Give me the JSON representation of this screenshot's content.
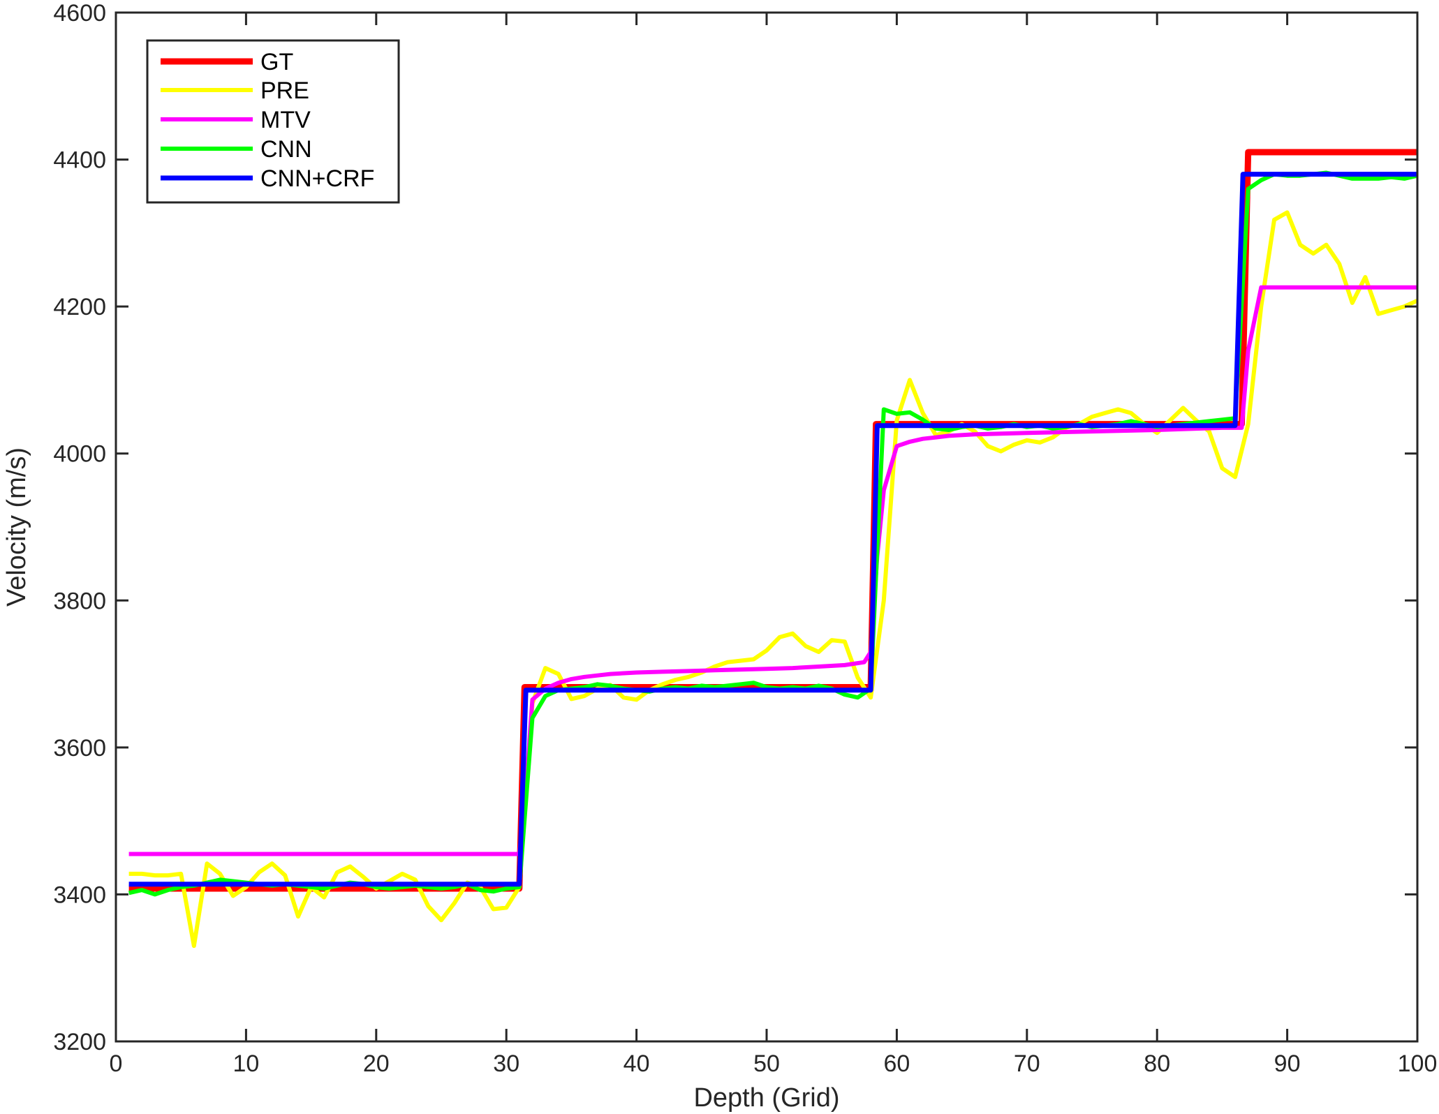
{
  "chart_data": {
    "type": "line",
    "title": "",
    "xlabel": "Depth (Grid)",
    "ylabel": "Velocity (m/s)",
    "xlim": [
      0,
      100
    ],
    "ylim": [
      3200,
      4600
    ],
    "xticks": [
      0,
      10,
      20,
      30,
      40,
      50,
      60,
      70,
      80,
      90,
      100
    ],
    "yticks": [
      3200,
      3400,
      3600,
      3800,
      4000,
      4200,
      4400,
      4600
    ],
    "xtick_labels": [
      "0",
      "10",
      "20",
      "30",
      "40",
      "50",
      "60",
      "70",
      "80",
      "90",
      "100"
    ],
    "ytick_labels": [
      "3200",
      "3400",
      "3600",
      "3800",
      "4000",
      "4200",
      "4400",
      "4600"
    ],
    "grid": false,
    "legend_position": "top-left",
    "series": [
      {
        "name": "GT",
        "color": "#ff0000",
        "x": [
          1,
          31,
          31.4,
          58,
          58.4,
          86.5,
          87,
          100
        ],
        "y": [
          3408,
          3408,
          3682,
          3682,
          4040,
          4040,
          4410,
          4410
        ]
      },
      {
        "name": "PRE",
        "color": "#ffff00",
        "x": [
          1,
          2,
          3,
          4,
          5,
          6,
          7,
          8,
          9,
          10,
          11,
          12,
          13,
          14,
          15,
          16,
          17,
          18,
          19,
          20,
          21,
          22,
          23,
          24,
          25,
          26,
          27,
          28,
          29,
          30,
          31,
          32,
          33,
          34,
          35,
          36,
          37,
          38,
          39,
          40,
          41,
          42,
          43,
          44,
          45,
          46,
          47,
          48,
          49,
          50,
          51,
          52,
          53,
          54,
          55,
          56,
          57,
          58,
          59,
          60,
          61,
          62,
          63,
          64,
          65,
          66,
          67,
          68,
          69,
          70,
          71,
          72,
          73,
          74,
          75,
          76,
          77,
          78,
          79,
          80,
          81,
          82,
          83,
          84,
          85,
          86,
          87,
          88,
          89,
          90,
          91,
          92,
          93,
          94,
          95,
          96,
          97,
          98,
          99,
          100
        ],
        "y": [
          3428,
          3428,
          3426,
          3426,
          3428,
          3330,
          3442,
          3428,
          3398,
          3410,
          3430,
          3442,
          3426,
          3370,
          3410,
          3396,
          3430,
          3438,
          3424,
          3408,
          3418,
          3428,
          3420,
          3384,
          3365,
          3388,
          3416,
          3410,
          3380,
          3382,
          3410,
          3660,
          3708,
          3700,
          3666,
          3670,
          3680,
          3685,
          3668,
          3665,
          3678,
          3686,
          3692,
          3696,
          3702,
          3710,
          3716,
          3718,
          3720,
          3732,
          3750,
          3755,
          3738,
          3730,
          3746,
          3744,
          3695,
          3668,
          3800,
          4045,
          4100,
          4055,
          4025,
          4030,
          4040,
          4030,
          4010,
          4003,
          4012,
          4018,
          4015,
          4022,
          4035,
          4040,
          4050,
          4055,
          4060,
          4055,
          4040,
          4028,
          4045,
          4062,
          4045,
          4030,
          3980,
          3968,
          4040,
          4200,
          4318,
          4328,
          4284,
          4272,
          4284,
          4258,
          4205,
          4240,
          4190,
          4195,
          4200,
          4208
        ]
      },
      {
        "name": "MTV",
        "color": "#ff00ff",
        "x": [
          1,
          31,
          31.5,
          32,
          33,
          34,
          35,
          36,
          37,
          38,
          40,
          42,
          44,
          46,
          48,
          50,
          52,
          54,
          56,
          57.5,
          58,
          58.5,
          59,
          60,
          61,
          62,
          63,
          64,
          66,
          70,
          75,
          80,
          85,
          86.5,
          87,
          88,
          100
        ],
        "y": [
          3455,
          3455,
          3540,
          3665,
          3680,
          3688,
          3693,
          3696,
          3698,
          3700,
          3702,
          3703,
          3704,
          3705,
          3706,
          3707,
          3708,
          3710,
          3712,
          3716,
          3730,
          3860,
          3950,
          4010,
          4016,
          4020,
          4022,
          4024,
          4026,
          4028,
          4030,
          4032,
          4035,
          4035,
          4140,
          4226,
          4226
        ]
      },
      {
        "name": "CNN",
        "color": "#00ff00",
        "x": [
          1,
          2,
          3,
          4,
          5,
          6,
          7,
          8,
          9,
          10,
          11,
          12,
          13,
          14,
          15,
          16,
          17,
          18,
          19,
          20,
          21,
          22,
          23,
          24,
          25,
          26,
          27,
          28,
          29,
          30,
          31,
          32,
          33,
          34,
          35,
          36,
          37,
          38,
          39,
          40,
          41,
          42,
          43,
          44,
          45,
          46,
          47,
          48,
          49,
          50,
          51,
          52,
          53,
          54,
          55,
          56,
          57,
          58,
          59,
          60,
          61,
          62,
          63,
          64,
          65,
          66,
          67,
          68,
          69,
          70,
          71,
          72,
          73,
          74,
          75,
          76,
          77,
          78,
          79,
          80,
          81,
          82,
          83,
          84,
          85,
          86,
          87,
          88,
          89,
          90,
          91,
          92,
          93,
          94,
          95,
          96,
          97,
          98,
          99,
          100
        ],
        "y": [
          3402,
          3406,
          3400,
          3406,
          3410,
          3412,
          3416,
          3420,
          3418,
          3416,
          3414,
          3412,
          3414,
          3412,
          3410,
          3408,
          3412,
          3416,
          3414,
          3410,
          3408,
          3410,
          3412,
          3410,
          3408,
          3410,
          3414,
          3406,
          3404,
          3408,
          3410,
          3640,
          3670,
          3678,
          3680,
          3682,
          3686,
          3684,
          3680,
          3678,
          3676,
          3680,
          3682,
          3680,
          3684,
          3682,
          3684,
          3686,
          3688,
          3682,
          3680,
          3682,
          3680,
          3684,
          3680,
          3672,
          3668,
          3680,
          4060,
          4054,
          4056,
          4046,
          4034,
          4032,
          4036,
          4038,
          4034,
          4036,
          4040,
          4036,
          4038,
          4034,
          4036,
          4040,
          4036,
          4038,
          4040,
          4044,
          4040,
          4036,
          4038,
          4040,
          4042,
          4044,
          4046,
          4048,
          4360,
          4372,
          4380,
          4378,
          4378,
          4380,
          4382,
          4378,
          4374,
          4374,
          4374,
          4376,
          4374,
          4378
        ]
      },
      {
        "name": "CNN+CRF",
        "color": "#0000ff",
        "x": [
          1,
          31,
          31.5,
          58,
          58.5,
          86,
          86.6,
          100
        ],
        "y": [
          3414,
          3414,
          3678,
          3678,
          4038,
          4038,
          4380,
          4380
        ]
      }
    ]
  }
}
